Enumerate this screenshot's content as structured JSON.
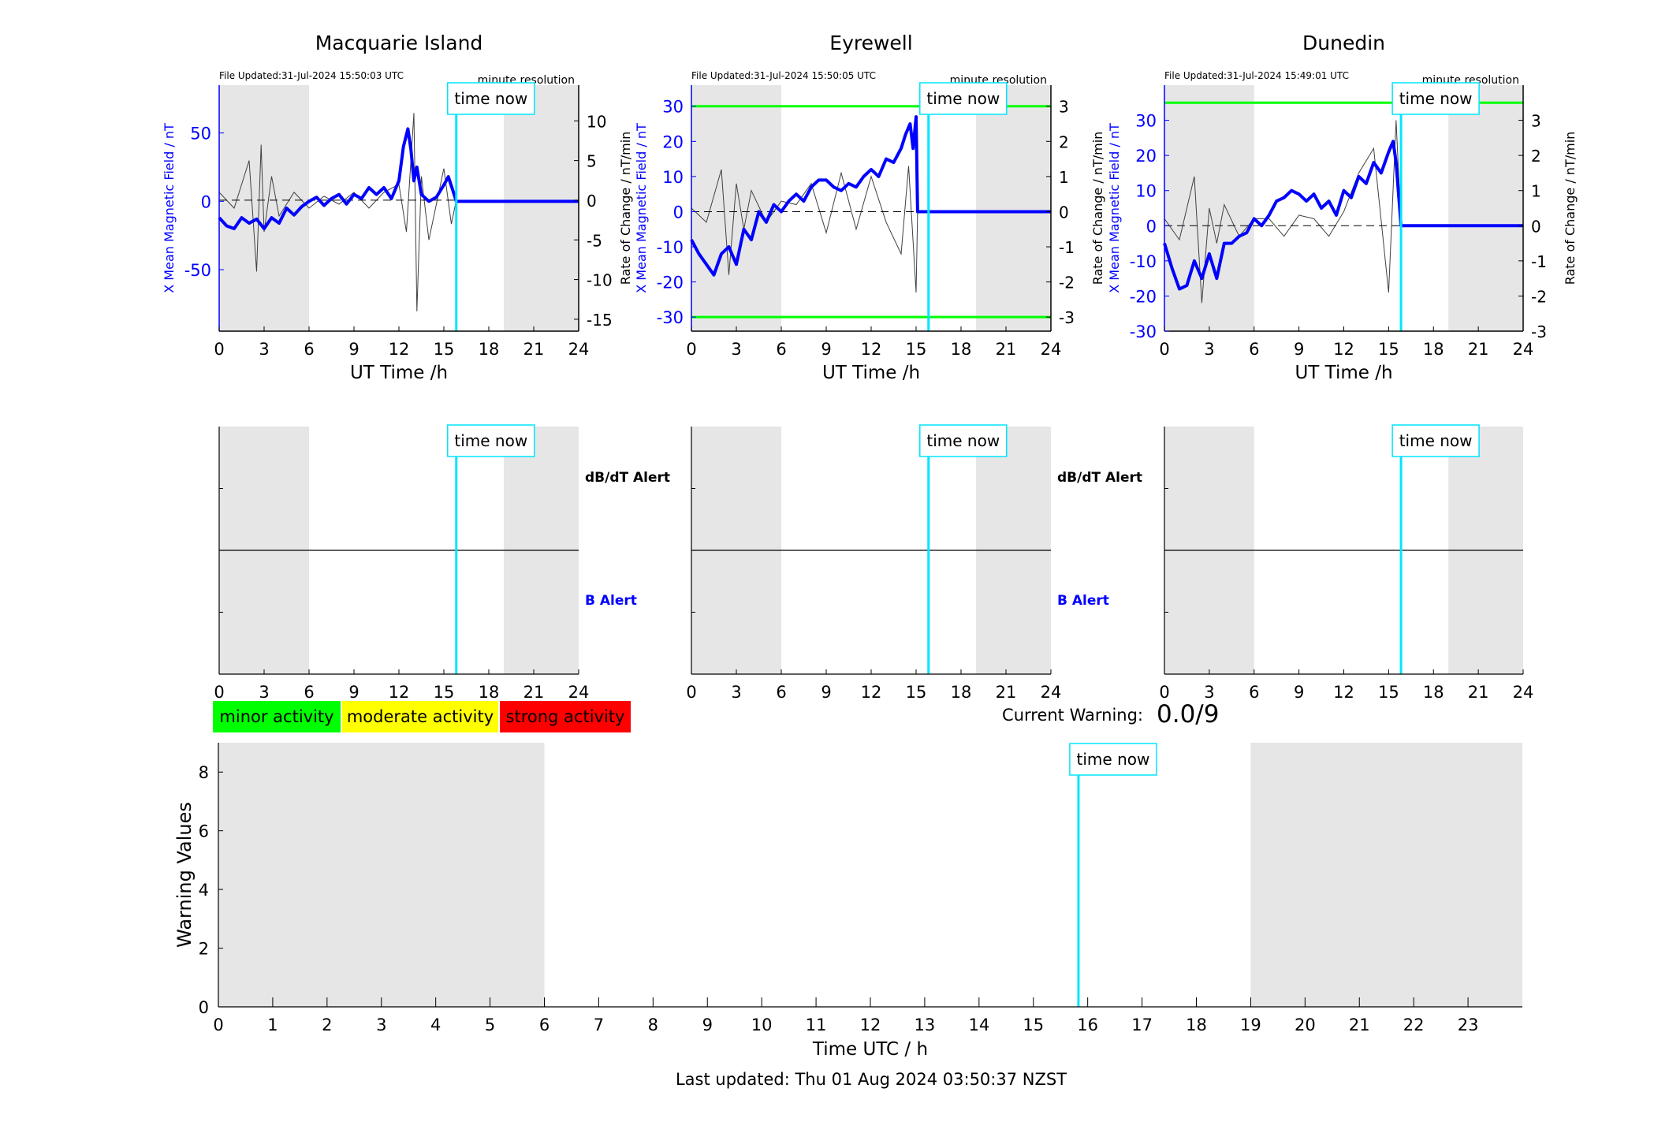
{
  "footer": {
    "last_updated": "Last updated: Thu 01 Aug 2024 03:50:37 NZST"
  },
  "current_warning": {
    "label": "Current Warning:",
    "value": "0.0/9"
  },
  "legend": [
    {
      "label": "minor activity",
      "color": "#00ff00"
    },
    {
      "label": "moderate activity",
      "color": "#ffff00"
    },
    {
      "label": "strong activity",
      "color": "#ff0000"
    }
  ],
  "colors": {
    "field": "#0000ff",
    "rate": "#404040",
    "time_now": "#00e5ff",
    "shade": "#e6e6e6",
    "threshold": "#00ff00"
  },
  "time_now_label": "time now",
  "alert_labels": {
    "dbdt": "dB/dT Alert",
    "b": "B Alert"
  },
  "chart_data": [
    {
      "type": "line",
      "title": "Macquarie Island",
      "file_updated": "File Updated:31-Jul-2024 15:50:03 UTC",
      "resolution": "minute resolution",
      "xlabel": "UT Time /h",
      "ylabel_left": "X Mean Magnetic Field / nT",
      "ylabel_right": "Rate of Change / nT/min",
      "xlim": [
        0,
        24
      ],
      "xticks": [
        0,
        3,
        6,
        9,
        12,
        15,
        18,
        21,
        24
      ],
      "ylim_left": [
        -95,
        85
      ],
      "yticks_left": [
        -50,
        0,
        50
      ],
      "ylim_right": [
        -16.5,
        14.5
      ],
      "yticks_right": [
        -15,
        -10,
        -5,
        0,
        5,
        10
      ],
      "thresholds_left": [],
      "shaded_hours": [
        [
          0,
          6
        ],
        [
          19,
          24
        ]
      ],
      "time_now": 15.83,
      "series": [
        {
          "axis": "left",
          "x": [
            0,
            0.5,
            1,
            1.5,
            2,
            2.5,
            3,
            3.5,
            4,
            4.5,
            5,
            5.5,
            6,
            6.5,
            7,
            7.5,
            8,
            8.5,
            9,
            9.5,
            10,
            10.5,
            11,
            11.5,
            12,
            12.3,
            12.6,
            12.8,
            13,
            13.2,
            13.5,
            14,
            14.5,
            15,
            15.3,
            15.6,
            15.83,
            24
          ],
          "y": [
            -12,
            -18,
            -20,
            -12,
            -16,
            -13,
            -20,
            -12,
            -16,
            -5,
            -10,
            -4,
            0,
            3,
            -3,
            2,
            5,
            -2,
            5,
            2,
            10,
            5,
            10,
            2,
            15,
            40,
            53,
            38,
            15,
            25,
            5,
            0,
            3,
            12,
            18,
            8,
            0,
            0
          ]
        },
        {
          "axis": "right",
          "x": [
            0,
            1,
            2,
            2.5,
            2.8,
            3,
            3.5,
            4,
            5,
            6,
            7,
            8,
            9,
            10,
            11,
            12,
            12.5,
            13,
            13.2,
            13.5,
            14,
            15,
            15.5,
            15.83
          ],
          "y": [
            1,
            -1,
            5,
            -9,
            7,
            -4,
            3,
            -2,
            1,
            -1,
            0.5,
            -0.5,
            1,
            -1,
            1,
            2,
            -4,
            11,
            -14,
            3,
            -5,
            4,
            -3,
            0
          ]
        }
      ]
    },
    {
      "type": "line",
      "title": "Eyrewell",
      "file_updated": "File Updated:31-Jul-2024 15:50:05 UTC",
      "resolution": "minute resolution",
      "xlabel": "UT Time /h",
      "ylabel_left": "X Mean Magnetic Field / nT",
      "ylabel_right": "Rate of Change / nT/min",
      "xlim": [
        0,
        24
      ],
      "xticks": [
        0,
        3,
        6,
        9,
        12,
        15,
        18,
        21,
        24
      ],
      "ylim_left": [
        -34,
        36
      ],
      "yticks_left": [
        -30,
        -20,
        -10,
        0,
        10,
        20,
        30
      ],
      "ylim_right": [
        -3.4,
        3.6
      ],
      "yticks_right": [
        -3,
        -2,
        -1,
        0,
        1,
        2,
        3
      ],
      "thresholds_left": [
        30,
        -30
      ],
      "shaded_hours": [
        [
          0,
          6
        ],
        [
          19,
          24
        ]
      ],
      "time_now": 15.83,
      "series": [
        {
          "axis": "left",
          "x": [
            0,
            0.5,
            1,
            1.5,
            2,
            2.5,
            3,
            3.5,
            4,
            4.5,
            5,
            5.5,
            6,
            6.5,
            7,
            7.5,
            8,
            8.5,
            9,
            9.5,
            10,
            10.5,
            11,
            11.5,
            12,
            12.5,
            13,
            13.5,
            14,
            14.3,
            14.6,
            14.8,
            15,
            15.1,
            15.83,
            24
          ],
          "y": [
            -8,
            -12,
            -15,
            -18,
            -12,
            -10,
            -15,
            -5,
            -8,
            0,
            -3,
            2,
            0,
            3,
            5,
            3,
            7,
            9,
            9,
            7,
            6,
            8,
            7,
            10,
            12,
            10,
            15,
            14,
            18,
            22,
            25,
            18,
            27,
            0,
            0,
            0
          ]
        },
        {
          "axis": "right",
          "x": [
            0,
            1,
            2,
            2.5,
            3,
            3.5,
            4,
            5,
            6,
            7,
            8,
            9,
            10,
            11,
            12,
            13,
            14,
            14.5,
            15,
            15.1
          ],
          "y": [
            0.1,
            -0.3,
            1.2,
            -1.8,
            0.8,
            -0.5,
            0.6,
            -0.3,
            0.3,
            0.2,
            0.8,
            -0.6,
            1.1,
            -0.5,
            1,
            -0.3,
            -1.2,
            1.3,
            -2.3,
            0
          ]
        }
      ]
    },
    {
      "type": "line",
      "title": "Dunedin",
      "file_updated": "File Updated:31-Jul-2024 15:49:01 UTC",
      "resolution": "minute resolution",
      "xlabel": "UT Time /h",
      "ylabel_left": "X Mean Magnetic Field / nT",
      "ylabel_right": "Rate of Change / nT/min",
      "xlim": [
        0,
        24
      ],
      "xticks": [
        0,
        3,
        6,
        9,
        12,
        15,
        18,
        21,
        24
      ],
      "ylim_left": [
        -30,
        40
      ],
      "yticks_left": [
        -30,
        -20,
        -10,
        0,
        10,
        20,
        30
      ],
      "ylim_right": [
        -3,
        4
      ],
      "yticks_right": [
        -3,
        -2,
        -1,
        0,
        1,
        2,
        3
      ],
      "thresholds_left": [
        35
      ],
      "shaded_hours": [
        [
          0,
          6
        ],
        [
          19,
          24
        ]
      ],
      "time_now": 15.83,
      "series": [
        {
          "axis": "left",
          "x": [
            0,
            0.5,
            1,
            1.5,
            2,
            2.5,
            3,
            3.5,
            4,
            4.5,
            5,
            5.5,
            6,
            6.5,
            7,
            7.5,
            8,
            8.5,
            9,
            9.5,
            10,
            10.5,
            11,
            11.5,
            12,
            12.5,
            13,
            13.5,
            14,
            14.5,
            15,
            15.3,
            15.5,
            15.83,
            24
          ],
          "y": [
            -5,
            -12,
            -18,
            -17,
            -10,
            -15,
            -8,
            -15,
            -5,
            -5,
            -3,
            -2,
            2,
            0,
            3,
            7,
            8,
            10,
            9,
            7,
            9,
            5,
            7,
            3,
            10,
            8,
            14,
            12,
            18,
            15,
            21,
            24,
            18,
            0,
            0
          ]
        },
        {
          "axis": "right",
          "x": [
            0,
            1,
            2,
            2.5,
            3,
            3.5,
            4,
            5,
            6,
            7,
            8,
            9,
            10,
            11,
            12,
            13,
            14,
            15,
            15.5,
            15.83
          ],
          "y": [
            0.2,
            -0.4,
            1.4,
            -2.2,
            0.5,
            -0.5,
            0.6,
            -0.3,
            0.2,
            0.2,
            -0.3,
            0.3,
            0.2,
            -0.3,
            0.4,
            1.5,
            2.2,
            -1.9,
            3,
            0
          ]
        }
      ]
    },
    {
      "type": "bar",
      "title": "",
      "xlabel": "Time UTC / h",
      "ylabel": "Warning Values",
      "xlim": [
        0,
        24
      ],
      "xticks": [
        0,
        1,
        2,
        3,
        4,
        5,
        6,
        7,
        8,
        9,
        10,
        11,
        12,
        13,
        14,
        15,
        16,
        17,
        18,
        19,
        20,
        21,
        22,
        23
      ],
      "ylim": [
        0,
        9
      ],
      "yticks": [
        0,
        2,
        4,
        6,
        8
      ],
      "shaded_hours": [
        [
          0,
          6
        ],
        [
          19,
          24
        ]
      ],
      "time_now": 15.83,
      "values": []
    }
  ]
}
